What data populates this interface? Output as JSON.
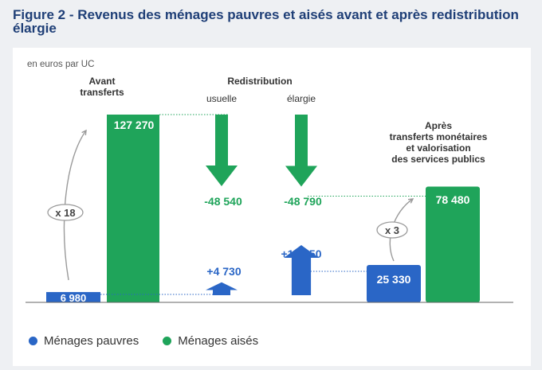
{
  "figure_title": "Figure 2 - Revenus des ménages pauvres et aisés avant et après redistribution élargie",
  "colors": {
    "poor": "#2a66c6",
    "rich": "#1fa45a",
    "axis": "#666666",
    "label_dark": "#333333"
  },
  "chart_data": {
    "type": "bar",
    "unit_note": "en euros par UC",
    "groups": {
      "before": [
        "Avant",
        "transferts"
      ],
      "redistribution": "Redistribution",
      "usual": "usuelle",
      "extended": "élargie",
      "after": [
        "Après",
        "transferts monétaires",
        "et valorisation",
        "des services publics"
      ]
    },
    "ylim": [
      0,
      140000
    ],
    "series": [
      {
        "name": "Ménages pauvres",
        "before": 6980,
        "before_label": "6 980",
        "usual": 4730,
        "usual_label": "+4 730",
        "extended": 18350,
        "extended_label": "+18 350",
        "after": 25330,
        "after_label": "25 330"
      },
      {
        "name": "Ménages aisés",
        "before": 127270,
        "before_label": "127 270",
        "usual": -48540,
        "usual_label": "-48 540",
        "extended": -48790,
        "extended_label": "-48 790",
        "after": 78480,
        "after_label": "78 480"
      }
    ],
    "ratios": {
      "rich_to_poor_before": "x 18",
      "rich_to_poor_after": "x 3"
    }
  },
  "legend": [
    {
      "label": "Ménages pauvres",
      "color": "#2a66c6"
    },
    {
      "label": "Ménages aisés",
      "color": "#1fa45a"
    }
  ]
}
